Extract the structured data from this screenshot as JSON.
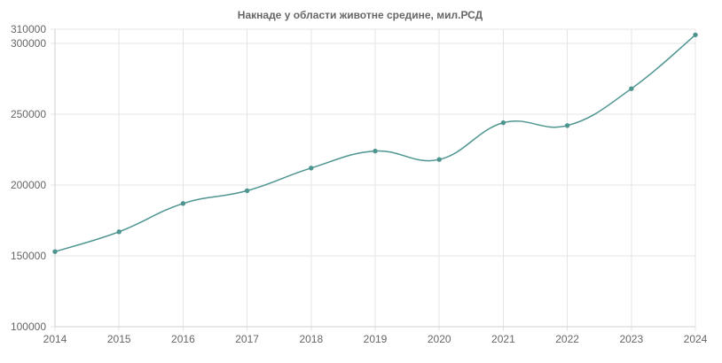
{
  "chart_data": {
    "type": "line",
    "title": "Накнаде у области животне средине, мил.РСД",
    "xlabel": "",
    "ylabel": "",
    "x": [
      "2014",
      "2015",
      "2016",
      "2017",
      "2018",
      "2019",
      "2020",
      "2021",
      "2022",
      "2023",
      "2024"
    ],
    "series": [
      {
        "values": [
          153000,
          167000,
          187000,
          196000,
          212000,
          224000,
          218000,
          244000,
          242000,
          268000,
          306000
        ]
      }
    ],
    "ylim": [
      100000,
      310000
    ],
    "yticks": [
      "100000",
      "150000",
      "200000",
      "250000",
      "300000",
      "310000"
    ],
    "grid": true,
    "legend": "none",
    "colors": {
      "line": "#4e9590",
      "grid": "#e4e4e4",
      "text": "#666666"
    }
  }
}
